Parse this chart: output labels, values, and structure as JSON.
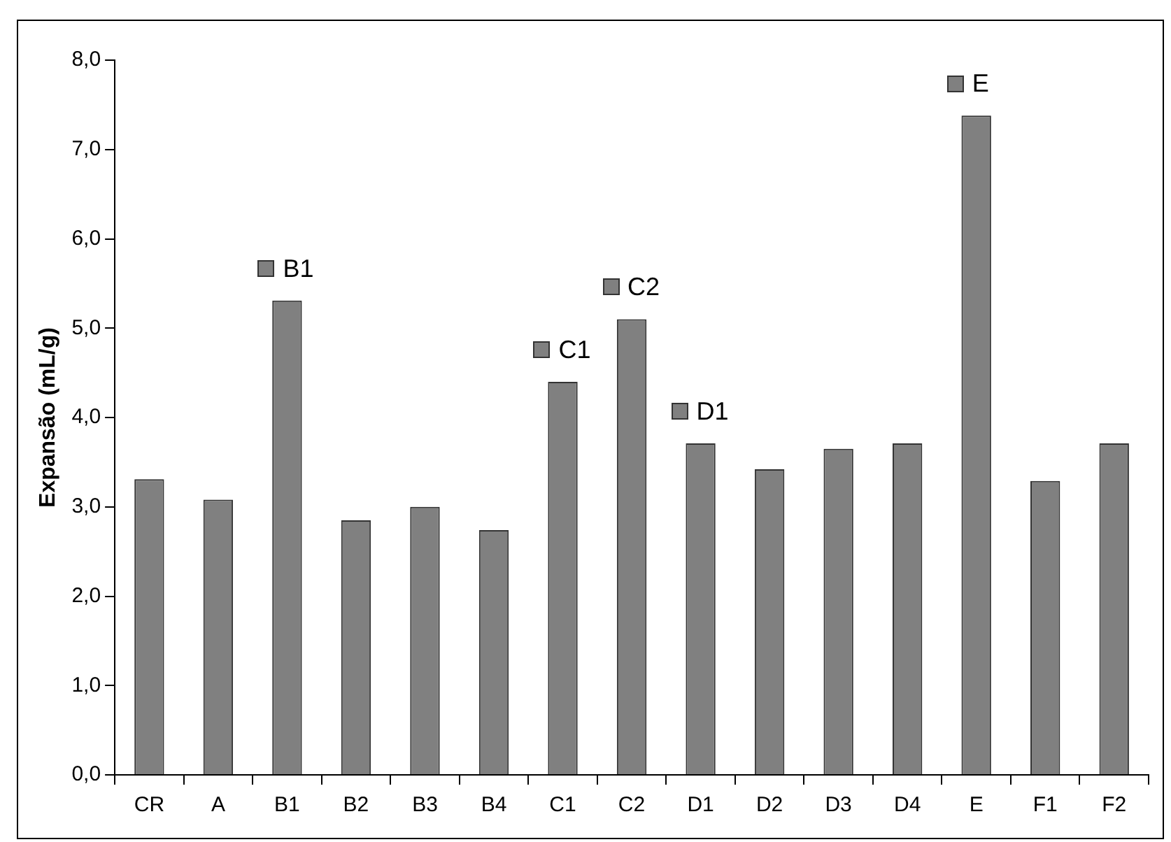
{
  "chart_data": {
    "type": "bar",
    "ylabel": "Expansão (mL/g)",
    "categories": [
      "CR",
      "A",
      "B1",
      "B2",
      "B3",
      "B4",
      "C1",
      "C2",
      "D1",
      "D2",
      "D3",
      "D4",
      "E",
      "F1",
      "F2"
    ],
    "values": [
      3.31,
      3.08,
      5.31,
      2.85,
      3.0,
      2.74,
      4.4,
      5.1,
      3.71,
      3.42,
      3.65,
      3.71,
      7.38,
      3.29,
      3.71
    ],
    "color": "#808080",
    "ylim": [
      0,
      8
    ],
    "yticks": [
      {
        "value": 0,
        "label": "0,0"
      },
      {
        "value": 1,
        "label": "1,0"
      },
      {
        "value": 2,
        "label": "2,0"
      },
      {
        "value": 3,
        "label": "3,0"
      },
      {
        "value": 4,
        "label": "4,0"
      },
      {
        "value": 5,
        "label": "5,0"
      },
      {
        "value": 6,
        "label": "6,0"
      },
      {
        "value": 7,
        "label": "7,0"
      },
      {
        "value": 8,
        "label": "8,0"
      }
    ],
    "value_labels": [
      null,
      null,
      "B1",
      null,
      null,
      null,
      "C1",
      "C2",
      "D1",
      null,
      null,
      null,
      "E",
      null,
      null
    ],
    "grid": false,
    "legend": false
  }
}
